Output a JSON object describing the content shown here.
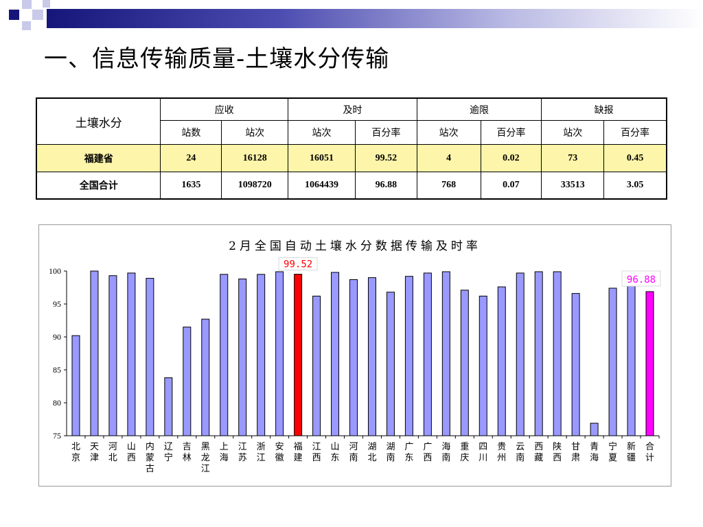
{
  "slide": {
    "title": "一、信息传输质量-土壤水分传输"
  },
  "table": {
    "corner": "土壤水分",
    "groups": [
      "应收",
      "及时",
      "逾限",
      "缺报"
    ],
    "subheaders": [
      "站数",
      "站次",
      "站次",
      "百分率",
      "站次",
      "百分率",
      "站次",
      "百分率"
    ],
    "rows": [
      {
        "name": "福建省",
        "cells": [
          "24",
          "16128",
          "16051",
          "99.52",
          "4",
          "0.02",
          "73",
          "0.45"
        ]
      },
      {
        "name": "全国合计",
        "cells": [
          "1635",
          "1098720",
          "1064439",
          "96.88",
          "768",
          "0.07",
          "33513",
          "3.05"
        ]
      }
    ]
  },
  "colors": {
    "bar": "#9999ff",
    "highlight": "#ff0000",
    "total": "#ff00ff",
    "row_highlight": "#fdf5a9"
  },
  "chart_data": {
    "type": "bar",
    "title": "2月全国自动土壤水分数据传输及时率",
    "categories": [
      "北京",
      "天津",
      "河北",
      "山西",
      "内蒙古",
      "辽宁",
      "吉林",
      "黑龙江",
      "上海",
      "江苏",
      "浙江",
      "安徽",
      "福建",
      "江西",
      "山东",
      "河南",
      "湖北",
      "湖南",
      "广东",
      "广西",
      "海南",
      "重庆",
      "四川",
      "贵州",
      "云南",
      "西藏",
      "陕西",
      "甘肃",
      "青海",
      "宁夏",
      "新疆",
      "合计"
    ],
    "values": [
      90.2,
      100,
      99.3,
      99.7,
      98.9,
      83.8,
      91.5,
      92.7,
      99.5,
      98.8,
      99.5,
      99.9,
      99.52,
      96.2,
      99.8,
      98.7,
      99.0,
      96.8,
      99.2,
      99.7,
      99.9,
      97.1,
      96.2,
      97.6,
      99.7,
      99.9,
      99.9,
      96.6,
      76.9,
      97.4,
      99.6,
      96.88
    ],
    "highlight_categories": [
      "福建",
      "合计"
    ],
    "annotations": [
      {
        "category": "福建",
        "text": "99.52"
      },
      {
        "category": "合计",
        "text": "96.88"
      }
    ],
    "yticks": [
      "100",
      "95",
      "90",
      "85",
      "80",
      "75"
    ],
    "ylim": [
      75,
      100
    ],
    "grid": false,
    "legend": "none"
  }
}
